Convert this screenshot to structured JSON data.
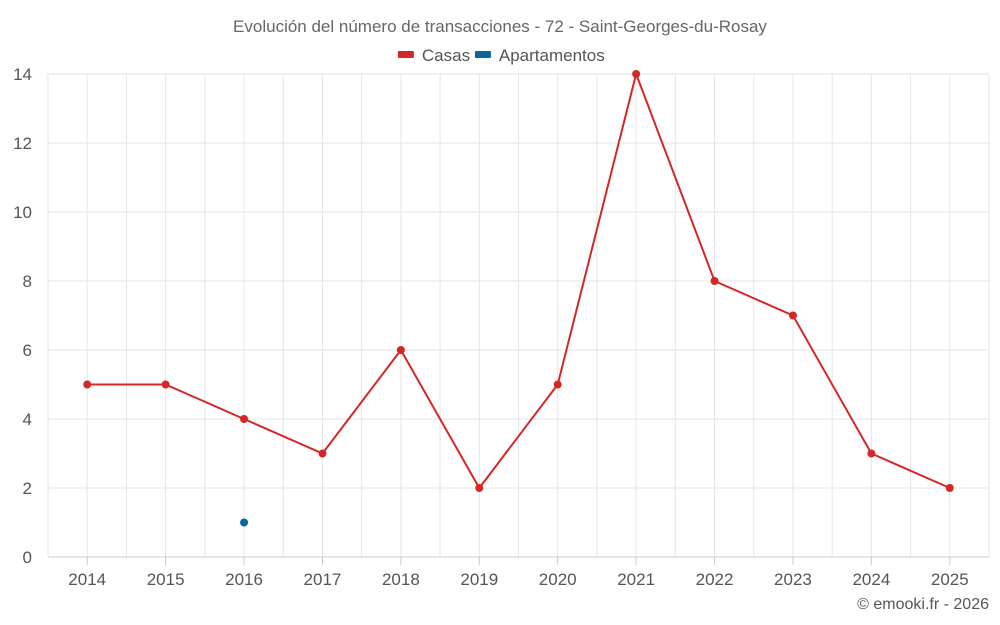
{
  "chart_data": {
    "type": "line",
    "title": "Evolución del número de transacciones - 72 - Saint-Georges-du-Rosay",
    "xlabel": "",
    "ylabel": "",
    "categories": [
      "2014",
      "2015",
      "2016",
      "2017",
      "2018",
      "2019",
      "2020",
      "2021",
      "2022",
      "2023",
      "2024",
      "2025"
    ],
    "ylim": [
      0,
      14
    ],
    "yticks": [
      0,
      2,
      4,
      6,
      8,
      10,
      12,
      14
    ],
    "grid": true,
    "legend_position": "top-center",
    "series": [
      {
        "name": "Casas",
        "color": "#d62728",
        "values": [
          5,
          5,
          4,
          3,
          6,
          2,
          5,
          14,
          8,
          7,
          3,
          2
        ]
      },
      {
        "name": "Apartamentos",
        "color": "#08679c",
        "values": [
          null,
          null,
          1,
          null,
          null,
          null,
          null,
          null,
          null,
          null,
          null,
          null
        ]
      }
    ]
  },
  "credit": "© emooki.fr - 2026"
}
